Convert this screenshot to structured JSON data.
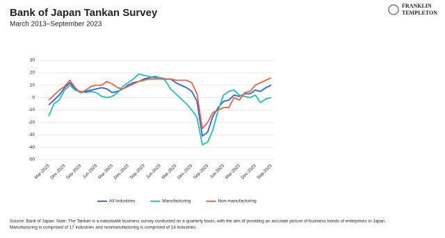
{
  "chart_data": {
    "type": "line",
    "title": "Bank of Japan Tankan Survey",
    "subtitle": "March 2013–September 2023",
    "logo": [
      "FRANKLIN",
      "TEMPLETON"
    ],
    "footnote": [
      "Source: Bank of Japan. Note: The Tankan is a nationwide business survey conducted on a quarterly basis, with the aim of providing an accurate picture of business trends of enterprises in Japan.",
      "Manufacturing is comprised of 17 industries and nonmanufacturing is comprised of 14 industries."
    ],
    "categories": [
      "Mar-2023",
      null,
      null,
      "Dec-2023",
      null,
      null,
      "Sep-2023",
      null,
      null,
      "Jun-2023",
      null,
      null,
      "Mar-2023",
      null,
      null,
      "Dec-2023",
      null,
      null,
      "Sep-2023",
      null,
      null,
      "Jun-2023",
      null,
      null,
      "Mar-2023",
      null,
      null,
      "Dec-2023",
      null,
      null,
      "Sep-2023",
      null,
      null,
      "Jun-2023",
      null,
      null,
      "Mar-2023",
      null,
      null,
      "Dec-2023",
      null,
      null,
      "Sep-2023"
    ],
    "series": [
      {
        "name": "All Industries",
        "color": "#2f5fe0",
        "values": [
          -6,
          -2,
          2,
          8,
          12,
          7,
          4,
          5,
          6,
          7,
          8,
          7,
          4,
          5,
          7,
          10,
          12,
          13,
          15,
          16,
          17,
          16,
          15,
          15,
          12,
          10,
          8,
          5,
          -3,
          -31,
          -28,
          -15,
          -8,
          -3,
          -2,
          2,
          1,
          3,
          3,
          6,
          5,
          8,
          10
        ]
      },
      {
        "name": "Manufacturing",
        "color": "#1fbfb0",
        "values": [
          -15,
          -5,
          -2,
          6,
          10,
          6,
          5,
          4,
          5,
          4,
          1,
          0,
          1,
          4,
          9,
          12,
          15,
          19,
          18,
          17,
          16,
          16,
          14,
          7,
          3,
          -1,
          -5,
          -10,
          -16,
          -38,
          -36,
          -26,
          -10,
          2,
          5,
          6,
          2,
          1,
          0,
          2,
          -4,
          -1,
          0
        ]
      },
      {
        "name": "Non-manufacturing",
        "color": "#f0603a",
        "values": [
          -2,
          2,
          6,
          9,
          14,
          8,
          4,
          6,
          9,
          10,
          10,
          13,
          11,
          8,
          7,
          9,
          11,
          13,
          14,
          15,
          15,
          15,
          15,
          15,
          14,
          14,
          14,
          12,
          3,
          -25,
          -20,
          -12,
          -10,
          -8,
          -8,
          0,
          -2,
          4,
          5,
          10,
          12,
          14,
          16
        ]
      }
    ],
    "ylim": [
      -50,
      30
    ],
    "yticks": [
      30,
      20,
      10,
      0,
      -10,
      -20,
      -30,
      -40,
      -50
    ],
    "grid": true
  }
}
